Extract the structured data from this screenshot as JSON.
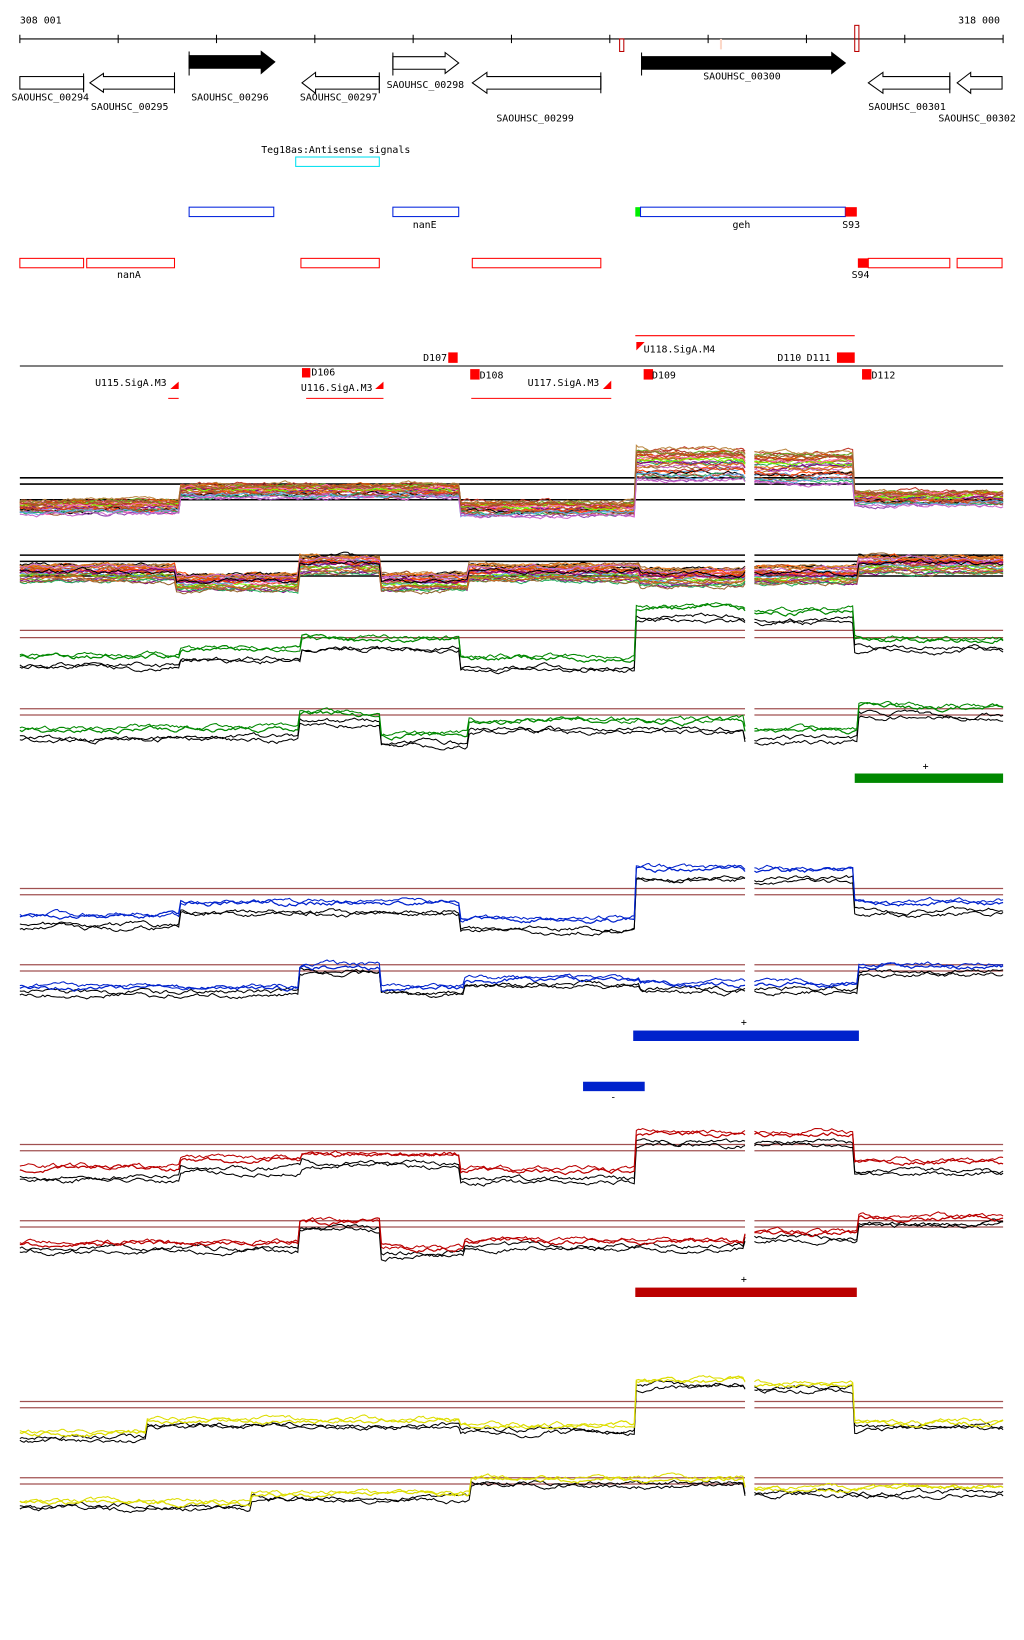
{
  "ruler": {
    "start_label": "308 001",
    "end_label": "318 000"
  },
  "genes": [
    {
      "name": "SAOUHSC_00294",
      "strand": "none"
    },
    {
      "name": "SAOUHSC_00295",
      "strand": "-"
    },
    {
      "name": "SAOUHSC_00296",
      "strand": "+"
    },
    {
      "name": "SAOUHSC_00297",
      "strand": "-"
    },
    {
      "name": "SAOUHSC_00298",
      "strand": "+"
    },
    {
      "name": "SAOUHSC_00299",
      "strand": "-"
    },
    {
      "name": "SAOUHSC_00300",
      "strand": "+"
    },
    {
      "name": "SAOUHSC_00301",
      "strand": "-"
    },
    {
      "name": "SAOUHSC_00302",
      "strand": "-"
    }
  ],
  "features": {
    "antisense_label": "Teg18as:Antisense signals",
    "plus_labels": [
      "nanE",
      "geh",
      "S93"
    ],
    "minus_labels": [
      "nanA",
      "S94"
    ]
  },
  "promoters": {
    "labels": [
      "U115.SigA.M3",
      "D106",
      "U116.SigA.M3",
      "D107",
      "D108",
      "U117.SigA.M3",
      "U118.SigA.M4",
      "D109",
      "D110",
      "D111",
      "D112"
    ]
  },
  "segments": {
    "green_label": "+",
    "blue_plus_label": "+",
    "blue_minus_label": "-",
    "red_label": "+"
  },
  "colors": {
    "green": "#008800",
    "blue": "#0022cc",
    "red": "#bb0000",
    "yellow": "#dddd00",
    "threshold": "#a05050"
  }
}
